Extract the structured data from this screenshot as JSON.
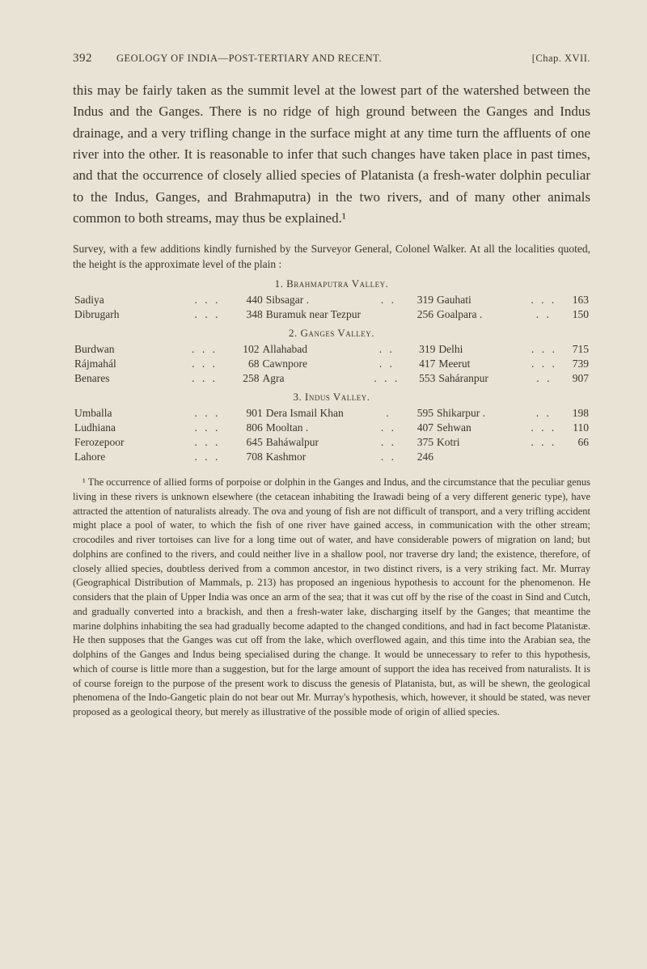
{
  "header": {
    "page_number": "392",
    "running_head": "GEOLOGY OF INDIA—POST-TERTIARY AND RECENT.",
    "chapter_ref": "[Chap. XVII."
  },
  "body_paragraph": "this may be fairly taken as the summit level at the lowest part of the watershed between the Indus and the Ganges. There is no ridge of high ground between the Ganges and Indus drainage, and a very trifling change in the surface might at any time turn the affluents of one river into the other. It is reasonable to infer that such changes have taken place in past times, and that the occurrence of closely allied species of Platanista (a fresh-water dolphin peculiar to the Indus, Ganges, and Brahmaputra) in the two rivers, and of many other animals common to both streams, may thus be explained.¹",
  "survey_note": "Survey, with a few additions kindly furnished by the Surveyor General, Colonel Walker. At all the localities quoted, the height is the approximate level of the plain :",
  "tables": {
    "section1": {
      "heading": "1. Brahmaputra Valley.",
      "rows": [
        {
          "c1": "Sadiya",
          "d1": ". . .",
          "n1": "440",
          "c2": "Sibsagar .",
          "d2": ". .",
          "n2": "319",
          "c3": "Gauhati",
          "d3": ". . .",
          "n3": "163"
        },
        {
          "c1": "Dibrugarh",
          "d1": ". . .",
          "n1": "348",
          "c2": "Buramuk near Tezpur",
          "d2": "",
          "n2": "256",
          "c3": "Goalpara .",
          "d3": ". .",
          "n3": "150"
        }
      ]
    },
    "section2": {
      "heading": "2. Ganges Valley.",
      "rows": [
        {
          "c1": "Burdwan",
          "d1": ". . .",
          "n1": "102",
          "c2": "Allahabad",
          "d2": ". .",
          "n2": "319",
          "c3": "Delhi",
          "d3": ". . .",
          "n3": "715"
        },
        {
          "c1": "Rájmahál",
          "d1": ". . .",
          "n1": "68",
          "c2": "Cawnpore",
          "d2": ". .",
          "n2": "417",
          "c3": "Meerut",
          "d3": ". . .",
          "n3": "739"
        },
        {
          "c1": "Benares",
          "d1": ". . .",
          "n1": "258",
          "c2": "Agra",
          "d2": ". . .",
          "n2": "553",
          "c3": "Saháranpur",
          "d3": ". .",
          "n3": "907"
        }
      ]
    },
    "section3": {
      "heading": "3. Indus Valley.",
      "rows": [
        {
          "c1": "Umballa",
          "d1": ". . .",
          "n1": "901",
          "c2": "Dera Ismail Khan",
          "d2": ".",
          "n2": "595",
          "c3": "Shikarpur .",
          "d3": ". .",
          "n3": "198"
        },
        {
          "c1": "Ludhiana",
          "d1": ". . .",
          "n1": "806",
          "c2": "Mooltan .",
          "d2": ". .",
          "n2": "407",
          "c3": "Sehwan",
          "d3": ". . .",
          "n3": "110"
        },
        {
          "c1": "Ferozepoor",
          "d1": ". . .",
          "n1": "645",
          "c2": "Baháwalpur",
          "d2": ". .",
          "n2": "375",
          "c3": "Kotri",
          "d3": ". . .",
          "n3": "66"
        },
        {
          "c1": "Lahore",
          "d1": ". . .",
          "n1": "708",
          "c2": "Kashmor",
          "d2": ". .",
          "n2": "246",
          "c3": "",
          "d3": "",
          "n3": ""
        }
      ]
    }
  },
  "footnote": "¹ The occurrence of allied forms of porpoise or dolphin in the Ganges and Indus, and the circumstance that the peculiar genus living in these rivers is unknown elsewhere (the cetacean inhabiting the Irawadi being of a very different generic type), have attracted the attention of naturalists already. The ova and young of fish are not difficult of transport, and a very trifling accident might place a pool of water, to which the fish of one river have gained access, in communication with the other stream; crocodiles and river tortoises can live for a long time out of water, and have considerable powers of migration on land; but dolphins are confined to the rivers, and could neither live in a shallow pool, nor traverse dry land; the existence, therefore, of closely allied species, doubtless derived from a common ancestor, in two distinct rivers, is a very striking fact. Mr. Murray (Geographical Distribution of Mammals, p. 213) has proposed an ingenious hypothesis to account for the phenomenon. He considers that the plain of Upper India was once an arm of the sea; that it was cut off by the rise of the coast in Sind and Cutch, and gradually converted into a brackish, and then a fresh-water lake, discharging itself by the Ganges; that meantime the marine dolphins inhabiting the sea had gradually become adapted to the changed conditions, and had in fact become Platanistæ. He then supposes that the Ganges was cut off from the lake, which overflowed again, and this time into the Arabian sea, the dolphins of the Ganges and Indus being specialised during the change. It would be unnecessary to refer to this hypothesis, which of course is little more than a suggestion, but for the large amount of support the idea has received from naturalists. It is of course foreign to the purpose of the present work to discuss the genesis of Platanista, but, as will be shewn, the geological phenomena of the Indo-Gangetic plain do not bear out Mr. Murray's hypothesis, which, however, it should be stated, was never proposed as a geological theory, but merely as illustrative of the possible mode of origin of allied species."
}
